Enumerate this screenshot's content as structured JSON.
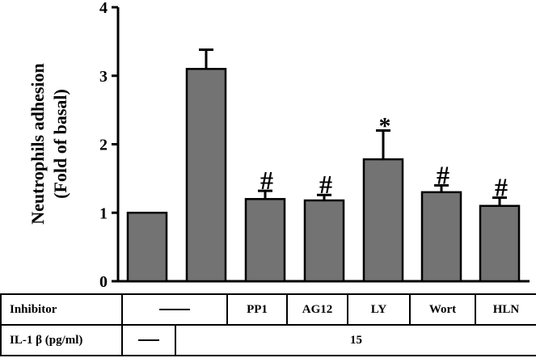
{
  "chart_data": {
    "type": "bar",
    "ylabel_line1": "Neutrophils adhesion",
    "ylabel_line2": "(Fold of basal)",
    "ylim": [
      0,
      4
    ],
    "yticks": [
      "0",
      "1",
      "2",
      "3",
      "4"
    ],
    "bar_color": "#737373",
    "values": [
      1.0,
      3.1,
      1.2,
      1.18,
      1.78,
      1.3,
      1.1
    ],
    "errors": [
      0.0,
      0.28,
      0.12,
      0.08,
      0.42,
      0.1,
      0.12
    ],
    "marks": [
      "",
      "",
      "#",
      "#",
      "*",
      "#",
      "#"
    ]
  },
  "table": {
    "row1": {
      "label": "Inhibitor",
      "cells": [
        "—",
        "PP1",
        "AG12",
        "LY",
        "Wort",
        "HLN"
      ]
    },
    "row2": {
      "label": "IL-1 β  (pg/ml)",
      "cells": [
        "—",
        "15"
      ]
    }
  }
}
